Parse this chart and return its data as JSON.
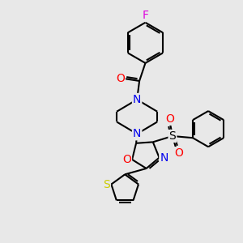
{
  "bg_color": "#e8e8e8",
  "bond_color": "#000000",
  "bond_width": 1.5,
  "dbo": 0.08,
  "atom_colors": {
    "N": "#0000ee",
    "O": "#ff0000",
    "S_th": "#cccc00",
    "F": "#dd00dd"
  }
}
